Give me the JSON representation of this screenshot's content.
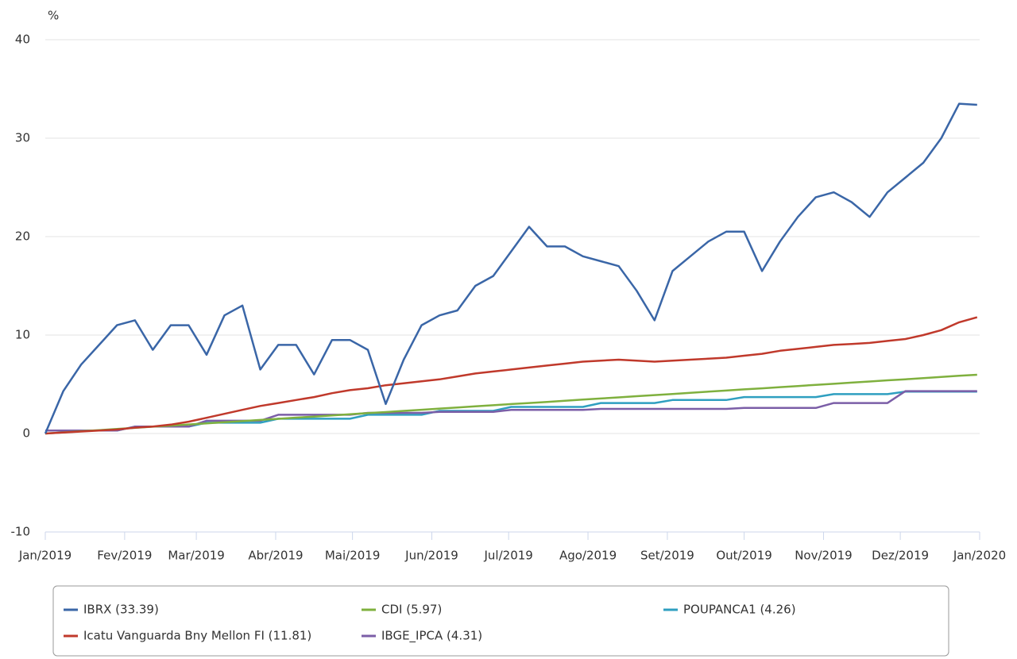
{
  "chart_data": {
    "type": "line",
    "y_label": "%",
    "ylim": [
      -10,
      40
    ],
    "yticks": [
      -10,
      0,
      10,
      20,
      30,
      40
    ],
    "xlim": [
      0,
      365
    ],
    "xticks": [
      {
        "value": 0,
        "label": "Jan/2019"
      },
      {
        "value": 31,
        "label": "Fev/2019"
      },
      {
        "value": 59,
        "label": "Mar/2019"
      },
      {
        "value": 90,
        "label": "Abr/2019"
      },
      {
        "value": 120,
        "label": "Mai/2019"
      },
      {
        "value": 151,
        "label": "Jun/2019"
      },
      {
        "value": 181,
        "label": "Jul/2019"
      },
      {
        "value": 212,
        "label": "Ago/2019"
      },
      {
        "value": 243,
        "label": "Set/2019"
      },
      {
        "value": 273,
        "label": "Out/2019"
      },
      {
        "value": 304,
        "label": "Nov/2019"
      },
      {
        "value": 334,
        "label": "Dez/2019"
      },
      {
        "value": 365,
        "label": "Jan/2020"
      }
    ],
    "grid": true,
    "x": [
      0,
      7,
      14,
      21,
      28,
      35,
      42,
      49,
      56,
      63,
      70,
      77,
      84,
      91,
      98,
      105,
      112,
      119,
      126,
      133,
      140,
      147,
      154,
      161,
      168,
      175,
      182,
      189,
      196,
      203,
      210,
      217,
      224,
      231,
      238,
      245,
      252,
      259,
      266,
      273,
      280,
      287,
      294,
      301,
      308,
      315,
      322,
      329,
      336,
      343,
      350,
      357,
      364
    ],
    "series": [
      {
        "name": "IBRX (33.39)",
        "color": "#3a66a7",
        "values": [
          0,
          4.3,
          7,
          9,
          11,
          11.5,
          8.5,
          11,
          11,
          8,
          12,
          13,
          6.5,
          9,
          9,
          6,
          9.5,
          9.5,
          8.5,
          3,
          7.5,
          11,
          12,
          12.5,
          15,
          16,
          18.5,
          21,
          19,
          19,
          18,
          17.5,
          17,
          14.5,
          11.5,
          16.5,
          18,
          19.5,
          20.5,
          20.5,
          16.5,
          19.5,
          22,
          24,
          24.5,
          23.5,
          22,
          24.5,
          26,
          27.5,
          30,
          33.5,
          33.39
        ]
      },
      {
        "name": "Icatu Vanguarda Bny Mellon FI (11.81)",
        "color": "#c0392b",
        "values": [
          0,
          0.1,
          0.2,
          0.3,
          0.4,
          0.6,
          0.7,
          0.9,
          1.2,
          1.6,
          2.0,
          2.4,
          2.8,
          3.1,
          3.4,
          3.7,
          4.1,
          4.4,
          4.6,
          4.9,
          5.1,
          5.3,
          5.5,
          5.8,
          6.1,
          6.3,
          6.5,
          6.7,
          6.9,
          7.1,
          7.3,
          7.4,
          7.5,
          7.4,
          7.3,
          7.4,
          7.5,
          7.6,
          7.7,
          7.9,
          8.1,
          8.4,
          8.6,
          8.8,
          9.0,
          9.1,
          9.2,
          9.4,
          9.6,
          10.0,
          10.5,
          11.3,
          11.81
        ]
      },
      {
        "name": "CDI (5.97)",
        "color": "#7fb03e",
        "values": [
          0,
          0.11,
          0.23,
          0.34,
          0.46,
          0.57,
          0.69,
          0.8,
          0.92,
          1.03,
          1.15,
          1.26,
          1.38,
          1.49,
          1.61,
          1.72,
          1.84,
          1.95,
          2.07,
          2.18,
          2.3,
          2.41,
          2.53,
          2.64,
          2.76,
          2.87,
          2.99,
          3.1,
          3.21,
          3.33,
          3.44,
          3.56,
          3.67,
          3.79,
          3.9,
          4.02,
          4.13,
          4.25,
          4.36,
          4.48,
          4.59,
          4.71,
          4.82,
          4.94,
          5.05,
          5.17,
          5.28,
          5.4,
          5.51,
          5.63,
          5.74,
          5.86,
          5.97
        ]
      },
      {
        "name": "IBGE_IPCA (4.31)",
        "color": "#7b5ea7",
        "values": [
          0.3,
          0.3,
          0.3,
          0.3,
          0.3,
          0.7,
          0.7,
          0.7,
          0.7,
          1.3,
          1.3,
          1.3,
          1.3,
          1.9,
          1.9,
          1.9,
          1.9,
          1.9,
          2.1,
          2.1,
          2.1,
          2.1,
          2.2,
          2.2,
          2.2,
          2.2,
          2.4,
          2.4,
          2.4,
          2.4,
          2.4,
          2.5,
          2.5,
          2.5,
          2.5,
          2.5,
          2.5,
          2.5,
          2.5,
          2.6,
          2.6,
          2.6,
          2.6,
          2.6,
          3.1,
          3.1,
          3.1,
          3.1,
          4.31,
          4.31,
          4.31,
          4.31,
          4.31
        ]
      },
      {
        "name": "POUPANCA1 (4.26)",
        "color": "#2f9fc0",
        "values": [
          0.3,
          0.3,
          0.3,
          0.3,
          0.3,
          0.7,
          0.7,
          0.7,
          0.7,
          1.1,
          1.1,
          1.1,
          1.1,
          1.5,
          1.5,
          1.5,
          1.5,
          1.5,
          1.9,
          1.9,
          1.9,
          1.9,
          2.3,
          2.3,
          2.3,
          2.3,
          2.7,
          2.7,
          2.7,
          2.7,
          2.7,
          3.1,
          3.1,
          3.1,
          3.1,
          3.4,
          3.4,
          3.4,
          3.4,
          3.7,
          3.7,
          3.7,
          3.7,
          3.7,
          4.0,
          4.0,
          4.0,
          4.0,
          4.26,
          4.26,
          4.26,
          4.26,
          4.26
        ]
      }
    ]
  }
}
